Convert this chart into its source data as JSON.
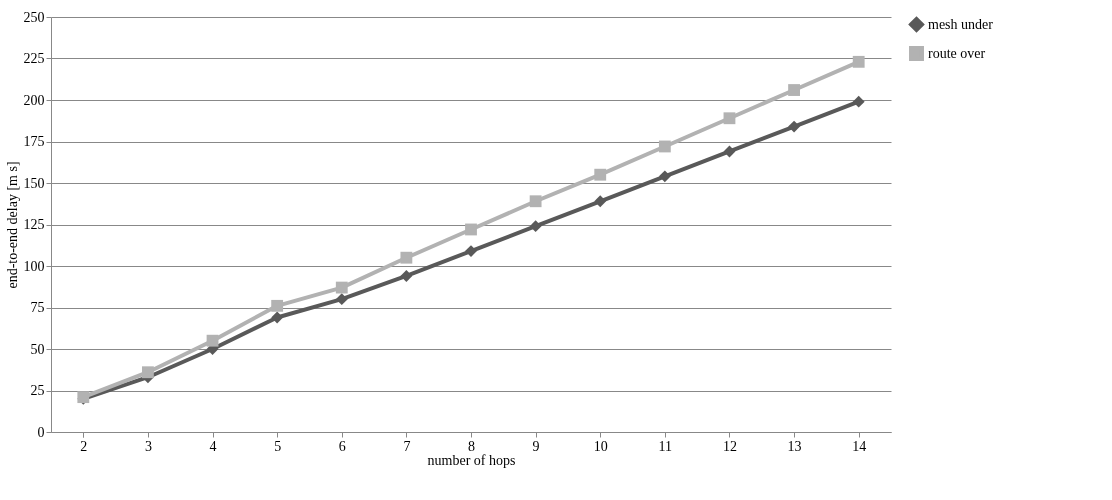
{
  "chart_data": {
    "type": "line",
    "xlabel": "number of hops",
    "ylabel": "end-to-end delay [m s]",
    "categories": [
      "2",
      "3",
      "4",
      "5",
      "6",
      "7",
      "8",
      "9",
      "10",
      "11",
      "12",
      "13",
      "14"
    ],
    "series": [
      {
        "name": "mesh under",
        "color": "#595959",
        "marker": "diamond",
        "values": [
          20,
          33,
          50,
          69,
          80,
          94,
          109,
          124,
          139,
          154,
          169,
          184,
          199
        ]
      },
      {
        "name": "route over",
        "color": "#b2b2b2",
        "marker": "square",
        "values": [
          21,
          36,
          55,
          76,
          87,
          105,
          122,
          139,
          155,
          172,
          189,
          206,
          223
        ]
      }
    ],
    "ylim": [
      0,
      250
    ],
    "yticks": [
      0,
      25,
      50,
      75,
      100,
      125,
      150,
      175,
      200,
      225,
      250
    ],
    "grid": "y",
    "legend": "right",
    "line_style": "solid"
  }
}
